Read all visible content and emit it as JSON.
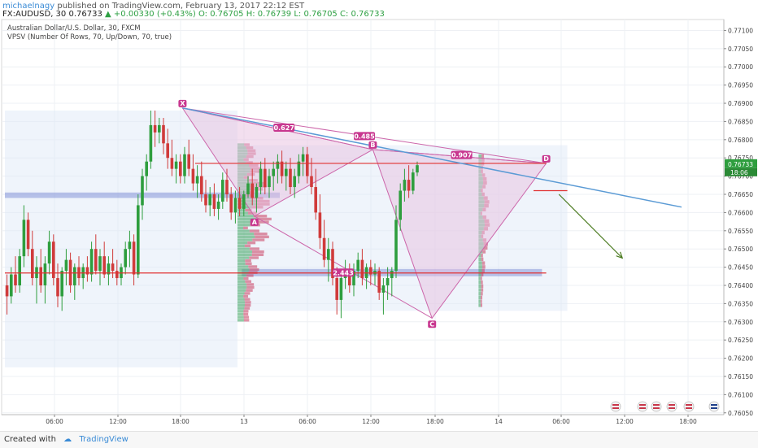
{
  "header": {
    "author": "michaelnagy",
    "published": "published on TradingView.com, February 13, 2017 22:12 EST",
    "symbol": "FX:AUDUSD, 30",
    "price": "0.76733",
    "change": "+0.00330 (+0.43%)",
    "ohlc": "O: 0.76705 H: 0.76739 L: 0.76705 C: 0.76733"
  },
  "legend": {
    "title": "Australian Dollar/U.S. Dollar, 30, FXCM",
    "indicator": "VPSV (Number Of Rows, 70, Up/Down, 70, true)"
  },
  "footer": {
    "created_with": "Created with",
    "brand": "TradingView"
  },
  "colors": {
    "up": "#2e9e3e",
    "down": "#d03b3b",
    "pattern_fill": "#e8bfe0",
    "pattern_line": "#cc66aa",
    "label_bg": "#c8378f",
    "trend_line": "#5b9bd5",
    "arrow": "#4a7a1f",
    "level_line": "#e03030"
  },
  "chart_data": {
    "type": "candlestick",
    "ylim": [
      0.76045,
      0.7713
    ],
    "y_ticks": [
      "0.77100",
      "0.77050",
      "0.77000",
      "0.76950",
      "0.76900",
      "0.76850",
      "0.76800",
      "0.76750",
      "0.76700",
      "0.76650",
      "0.76600",
      "0.76550",
      "0.76500",
      "0.76450",
      "0.76400",
      "0.76350",
      "0.76300",
      "0.76250",
      "0.76200",
      "0.76150",
      "0.76100",
      "0.76050"
    ],
    "x_labels": [
      "06:00",
      "12:00",
      "18:00",
      "13",
      "06:00",
      "12:00",
      "18:00",
      "14",
      "06:00",
      "12:00",
      "18:00"
    ],
    "last_price": "0.76733",
    "countdown": "18:06",
    "candles": [
      [
        0.764,
        0.7643,
        0.7632,
        0.7637
      ],
      [
        0.7637,
        0.7645,
        0.7635,
        0.7643
      ],
      [
        0.7643,
        0.7648,
        0.7638,
        0.764
      ],
      [
        0.764,
        0.765,
        0.7638,
        0.7648
      ],
      [
        0.7648,
        0.7662,
        0.7645,
        0.7658
      ],
      [
        0.7658,
        0.766,
        0.7648,
        0.765
      ],
      [
        0.765,
        0.7655,
        0.764,
        0.7642
      ],
      [
        0.7642,
        0.7648,
        0.7635,
        0.7645
      ],
      [
        0.7645,
        0.765,
        0.7638,
        0.764
      ],
      [
        0.764,
        0.7648,
        0.7635,
        0.7646
      ],
      [
        0.7646,
        0.7655,
        0.7643,
        0.7652
      ],
      [
        0.7652,
        0.7654,
        0.764,
        0.7642
      ],
      [
        0.7642,
        0.7646,
        0.7634,
        0.7637
      ],
      [
        0.7637,
        0.7645,
        0.7633,
        0.7644
      ],
      [
        0.7644,
        0.765,
        0.764,
        0.7647
      ],
      [
        0.7647,
        0.7649,
        0.7638,
        0.764
      ],
      [
        0.764,
        0.7646,
        0.7636,
        0.7645
      ],
      [
        0.7645,
        0.7648,
        0.764,
        0.7642
      ],
      [
        0.7642,
        0.7646,
        0.7639,
        0.7645
      ],
      [
        0.7645,
        0.7648,
        0.7641,
        0.7643
      ],
      [
        0.7643,
        0.7652,
        0.7641,
        0.765
      ],
      [
        0.765,
        0.7654,
        0.7643,
        0.7644
      ],
      [
        0.7644,
        0.765,
        0.764,
        0.7648
      ],
      [
        0.7648,
        0.7652,
        0.7642,
        0.7643
      ],
      [
        0.7643,
        0.7648,
        0.764,
        0.7646
      ],
      [
        0.7646,
        0.765,
        0.7642,
        0.7644
      ],
      [
        0.7644,
        0.7647,
        0.764,
        0.7642
      ],
      [
        0.7642,
        0.7646,
        0.764,
        0.7645
      ],
      [
        0.7645,
        0.7652,
        0.7643,
        0.765
      ],
      [
        0.765,
        0.7655,
        0.7645,
        0.7652
      ],
      [
        0.7652,
        0.7654,
        0.764,
        0.7643
      ],
      [
        0.7643,
        0.7665,
        0.7642,
        0.7662
      ],
      [
        0.7662,
        0.7672,
        0.7658,
        0.767
      ],
      [
        0.767,
        0.7676,
        0.7666,
        0.7674
      ],
      [
        0.7674,
        0.7688,
        0.7672,
        0.7684
      ],
      [
        0.7684,
        0.7688,
        0.7678,
        0.7682
      ],
      [
        0.7682,
        0.7686,
        0.7679,
        0.7684
      ],
      [
        0.7684,
        0.7686,
        0.7676,
        0.7679
      ],
      [
        0.7679,
        0.7683,
        0.7672,
        0.7675
      ],
      [
        0.7675,
        0.768,
        0.767,
        0.7672
      ],
      [
        0.7672,
        0.7676,
        0.7668,
        0.7674
      ],
      [
        0.7674,
        0.7676,
        0.7668,
        0.767
      ],
      [
        0.767,
        0.7678,
        0.7668,
        0.7676
      ],
      [
        0.7676,
        0.768,
        0.767,
        0.7672
      ],
      [
        0.7672,
        0.7676,
        0.7666,
        0.7668
      ],
      [
        0.7668,
        0.7673,
        0.7664,
        0.767
      ],
      [
        0.767,
        0.7674,
        0.7663,
        0.7665
      ],
      [
        0.7665,
        0.7669,
        0.766,
        0.7662
      ],
      [
        0.7662,
        0.7667,
        0.7659,
        0.7665
      ],
      [
        0.7665,
        0.7668,
        0.7659,
        0.7661
      ],
      [
        0.7661,
        0.7665,
        0.7658,
        0.7663
      ],
      [
        0.7663,
        0.7671,
        0.7661,
        0.7669
      ],
      [
        0.7669,
        0.7672,
        0.7663,
        0.7665
      ],
      [
        0.7665,
        0.7667,
        0.7658,
        0.766
      ],
      [
        0.766,
        0.7666,
        0.7657,
        0.7664
      ],
      [
        0.7664,
        0.7667,
        0.7659,
        0.7661
      ],
      [
        0.7661,
        0.7666,
        0.7659,
        0.7665
      ],
      [
        0.7665,
        0.767,
        0.7664,
        0.7668
      ],
      [
        0.7668,
        0.7672,
        0.7662,
        0.7664
      ],
      [
        0.7664,
        0.7668,
        0.766,
        0.7667
      ],
      [
        0.7667,
        0.7674,
        0.7665,
        0.7672
      ],
      [
        0.7672,
        0.7675,
        0.7665,
        0.7667
      ],
      [
        0.7667,
        0.7672,
        0.7664,
        0.767
      ],
      [
        0.767,
        0.7674,
        0.7666,
        0.7672
      ],
      [
        0.7672,
        0.7676,
        0.7668,
        0.7674
      ],
      [
        0.7674,
        0.7677,
        0.7668,
        0.767
      ],
      [
        0.767,
        0.7674,
        0.7666,
        0.7672
      ],
      [
        0.7672,
        0.7675,
        0.7665,
        0.7667
      ],
      [
        0.7667,
        0.7672,
        0.7664,
        0.767
      ],
      [
        0.767,
        0.7676,
        0.7668,
        0.7674
      ],
      [
        0.7674,
        0.7678,
        0.767,
        0.7676
      ],
      [
        0.7676,
        0.7678,
        0.7668,
        0.767
      ],
      [
        0.767,
        0.7675,
        0.7665,
        0.7667
      ],
      [
        0.7667,
        0.7672,
        0.7658,
        0.766
      ],
      [
        0.766,
        0.7665,
        0.765,
        0.7653
      ],
      [
        0.7653,
        0.7658,
        0.7645,
        0.7647
      ],
      [
        0.7647,
        0.7653,
        0.7641,
        0.765
      ],
      [
        0.765,
        0.7652,
        0.764,
        0.7642
      ],
      [
        0.7642,
        0.7645,
        0.7632,
        0.7636
      ],
      [
        0.7636,
        0.7644,
        0.7631,
        0.7642
      ],
      [
        0.7642,
        0.7647,
        0.7639,
        0.7644
      ],
      [
        0.7644,
        0.7646,
        0.7638,
        0.764
      ],
      [
        0.764,
        0.7646,
        0.7637,
        0.7644
      ],
      [
        0.7644,
        0.7649,
        0.7642,
        0.7647
      ],
      [
        0.7647,
        0.765,
        0.764,
        0.7642
      ],
      [
        0.7642,
        0.7646,
        0.7639,
        0.7645
      ],
      [
        0.7645,
        0.7647,
        0.764,
        0.7643
      ],
      [
        0.7643,
        0.7646,
        0.764,
        0.7644
      ],
      [
        0.7644,
        0.7645,
        0.7636,
        0.7638
      ],
      [
        0.7638,
        0.7642,
        0.7632,
        0.764
      ],
      [
        0.764,
        0.7645,
        0.7636,
        0.7642
      ],
      [
        0.7642,
        0.7645,
        0.7637,
        0.7644
      ],
      [
        0.7644,
        0.7662,
        0.7642,
        0.7658
      ],
      [
        0.7658,
        0.7668,
        0.7655,
        0.7666
      ],
      [
        0.7666,
        0.7672,
        0.7663,
        0.7669
      ],
      [
        0.7669,
        0.7673,
        0.7664,
        0.7666
      ],
      [
        0.7666,
        0.7672,
        0.7665,
        0.7671
      ],
      [
        0.7671,
        0.7674,
        0.767,
        0.7673
      ]
    ],
    "pattern": {
      "points": [
        {
          "name": "X",
          "index": 42,
          "price": 0.76887
        },
        {
          "name": "A",
          "index": 59,
          "price": 0.7659
        },
        {
          "name": "B",
          "index": 87,
          "price": 0.76773
        },
        {
          "name": "C",
          "index": 101,
          "price": 0.7631
        },
        {
          "name": "D",
          "index": 128,
          "price": 0.76735
        }
      ],
      "ratios": [
        {
          "value": "0.627",
          "index": 66,
          "price": 0.76833
        },
        {
          "value": "0.485",
          "index": 85,
          "price": 0.7681
        },
        {
          "value": "0.907",
          "index": 108,
          "price": 0.76758
        },
        {
          "value": "2.443",
          "index": 80,
          "price": 0.76435
        }
      ]
    },
    "levels": [
      {
        "price": 0.76735,
        "from": 45,
        "to": 128
      },
      {
        "price": 0.76434,
        "from": 0,
        "to": 128
      },
      {
        "price": 0.7666,
        "from": 125,
        "to": 133
      }
    ],
    "trend_line": {
      "from": [
        42,
        0.76887
      ],
      "to": [
        160,
        0.76615
      ]
    },
    "forecast_arrow": {
      "from": [
        131,
        0.7665
      ],
      "to": [
        146,
        0.76475
      ]
    },
    "zones": [
      {
        "from": 0,
        "to": 55,
        "low": 0.76175,
        "high": 0.7688
      },
      {
        "from": 55,
        "to": 133,
        "low": 0.7633,
        "high": 0.76785
      },
      {
        "from": 0,
        "to": 65,
        "low": 0.7664,
        "high": 0.76655
      },
      {
        "from": 56,
        "to": 127,
        "low": 0.76425,
        "high": 0.76445
      }
    ]
  }
}
